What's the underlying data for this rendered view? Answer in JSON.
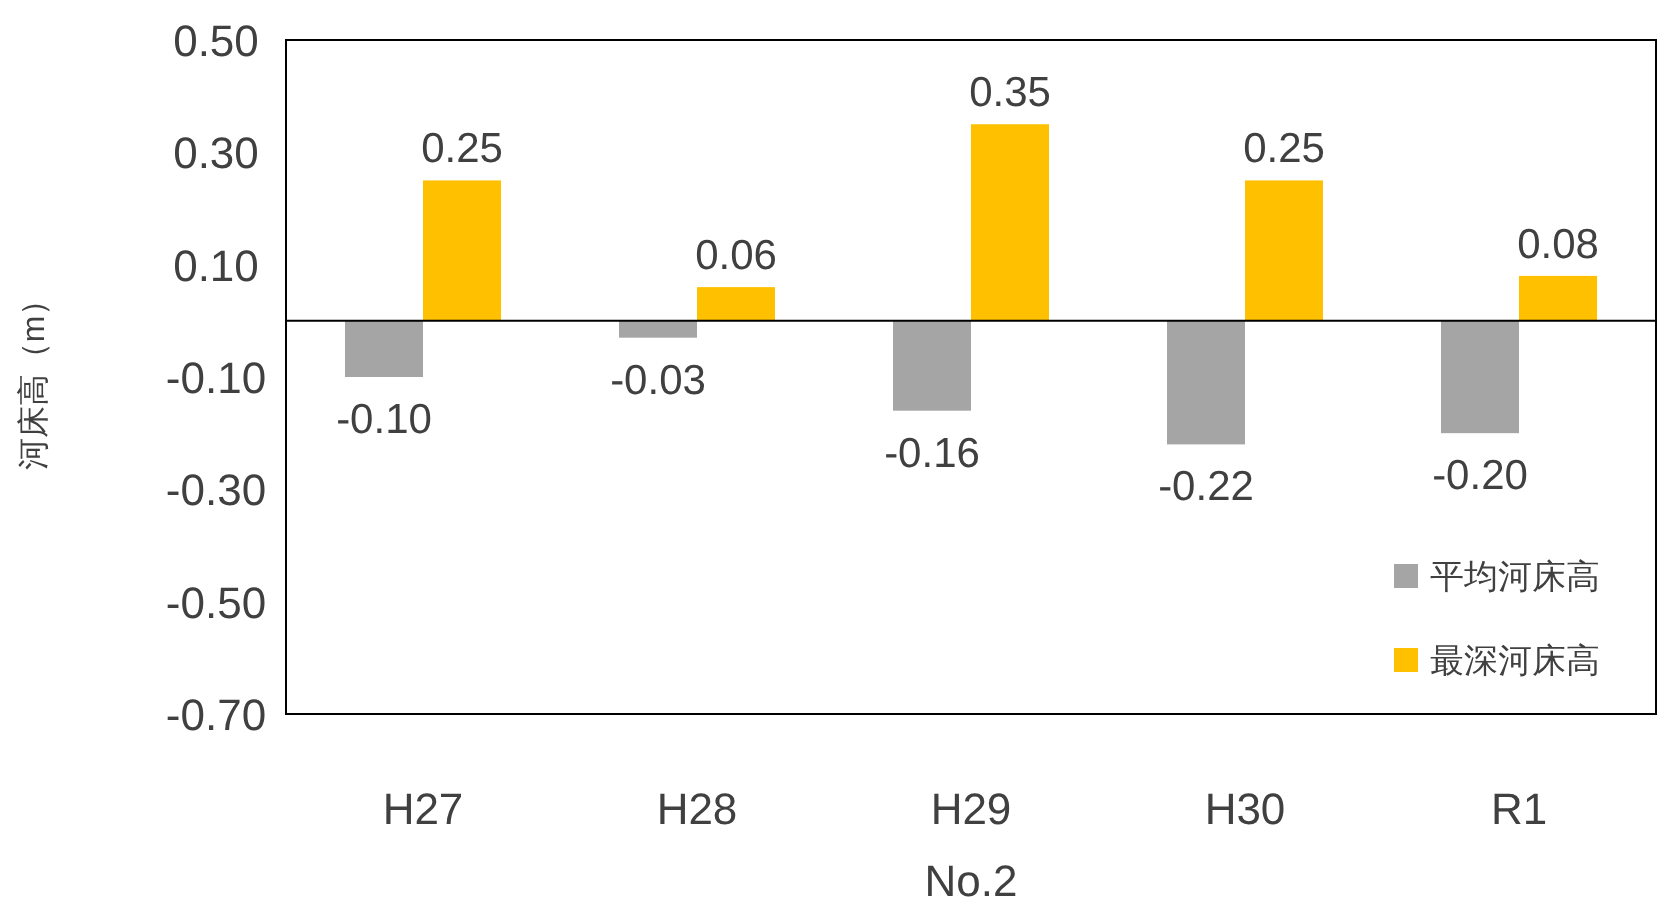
{
  "chart_data": {
    "type": "bar",
    "xlabel": "No.2",
    "ylabel": "河床高（m）",
    "categories": [
      "H27",
      "H28",
      "H29",
      "H30",
      "R1"
    ],
    "series": [
      {
        "name": "平均河床高",
        "color": "#a5a5a5",
        "values": [
          -0.1,
          -0.03,
          -0.16,
          -0.22,
          -0.2
        ],
        "value_labels": [
          "-0.10",
          "-0.03",
          "-0.16",
          "-0.22",
          "-0.20"
        ]
      },
      {
        "name": "最深河床高",
        "color": "#ffc000",
        "values": [
          0.25,
          0.06,
          0.35,
          0.25,
          0.08
        ],
        "value_labels": [
          "0.25",
          "0.06",
          "0.35",
          "0.25",
          "0.08"
        ]
      }
    ],
    "ylim": [
      -0.7,
      0.5
    ],
    "yticks": [
      {
        "value": 0.5,
        "label": "0.50"
      },
      {
        "value": 0.3,
        "label": "0.30"
      },
      {
        "value": 0.1,
        "label": "0.10"
      },
      {
        "value": -0.1,
        "label": "-0.10"
      },
      {
        "value": -0.3,
        "label": "-0.30"
      },
      {
        "value": -0.5,
        "label": "-0.50"
      },
      {
        "value": -0.7,
        "label": "-0.70"
      }
    ],
    "grid": false,
    "legend": "bottom right"
  }
}
